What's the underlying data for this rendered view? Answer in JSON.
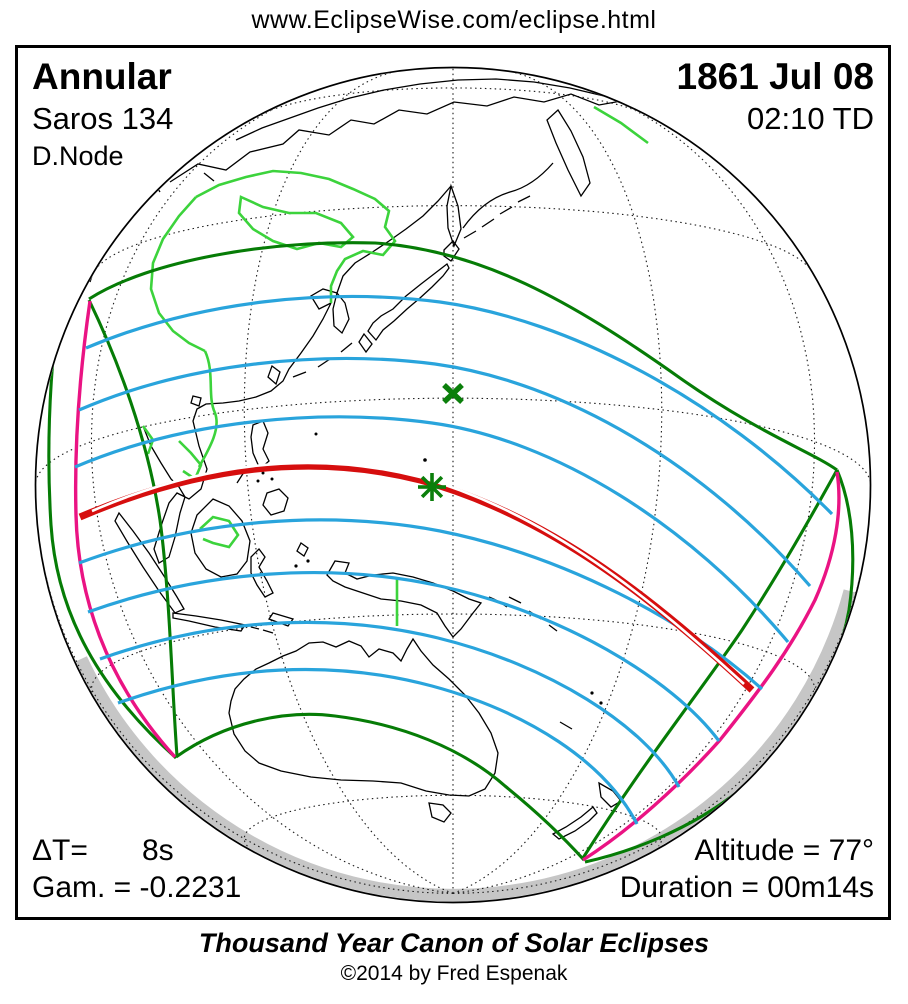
{
  "page": {
    "url_header": "www.EclipseWise.com/eclipse.html"
  },
  "eclipse": {
    "type": "Annular",
    "saros": "Saros 134",
    "node": "D.Node",
    "date": "1861 Jul 08",
    "time": "02:10 TD",
    "stats": {
      "delta_t_label": "ΔT=",
      "delta_t_value": "8s",
      "gamma": "Gam. = -0.2231",
      "altitude": "Altitude = 77°",
      "duration": "Duration = 00m14s"
    }
  },
  "footer": {
    "series_title": "Thousand Year Canon of Solar Eclipses",
    "copyright": "©2014 by Fred Espenak"
  },
  "map": {
    "marker_symbols": {
      "greatest_eclipse": "asterisk",
      "sub_solar_point": "x-cross"
    },
    "colors": {
      "coastline": "#000000",
      "political_border": "#3CD33C",
      "eclipse_limit_green": "#067C06",
      "magnitude_contour_blue": "#29A4DC",
      "central_path_red": "#D60E0E",
      "rise_set_magenta": "#EA1383",
      "twilight_band_gray": "#C6C6C6",
      "graticule": "#1A1A1A",
      "marker_green": "#0B7F0B"
    }
  }
}
